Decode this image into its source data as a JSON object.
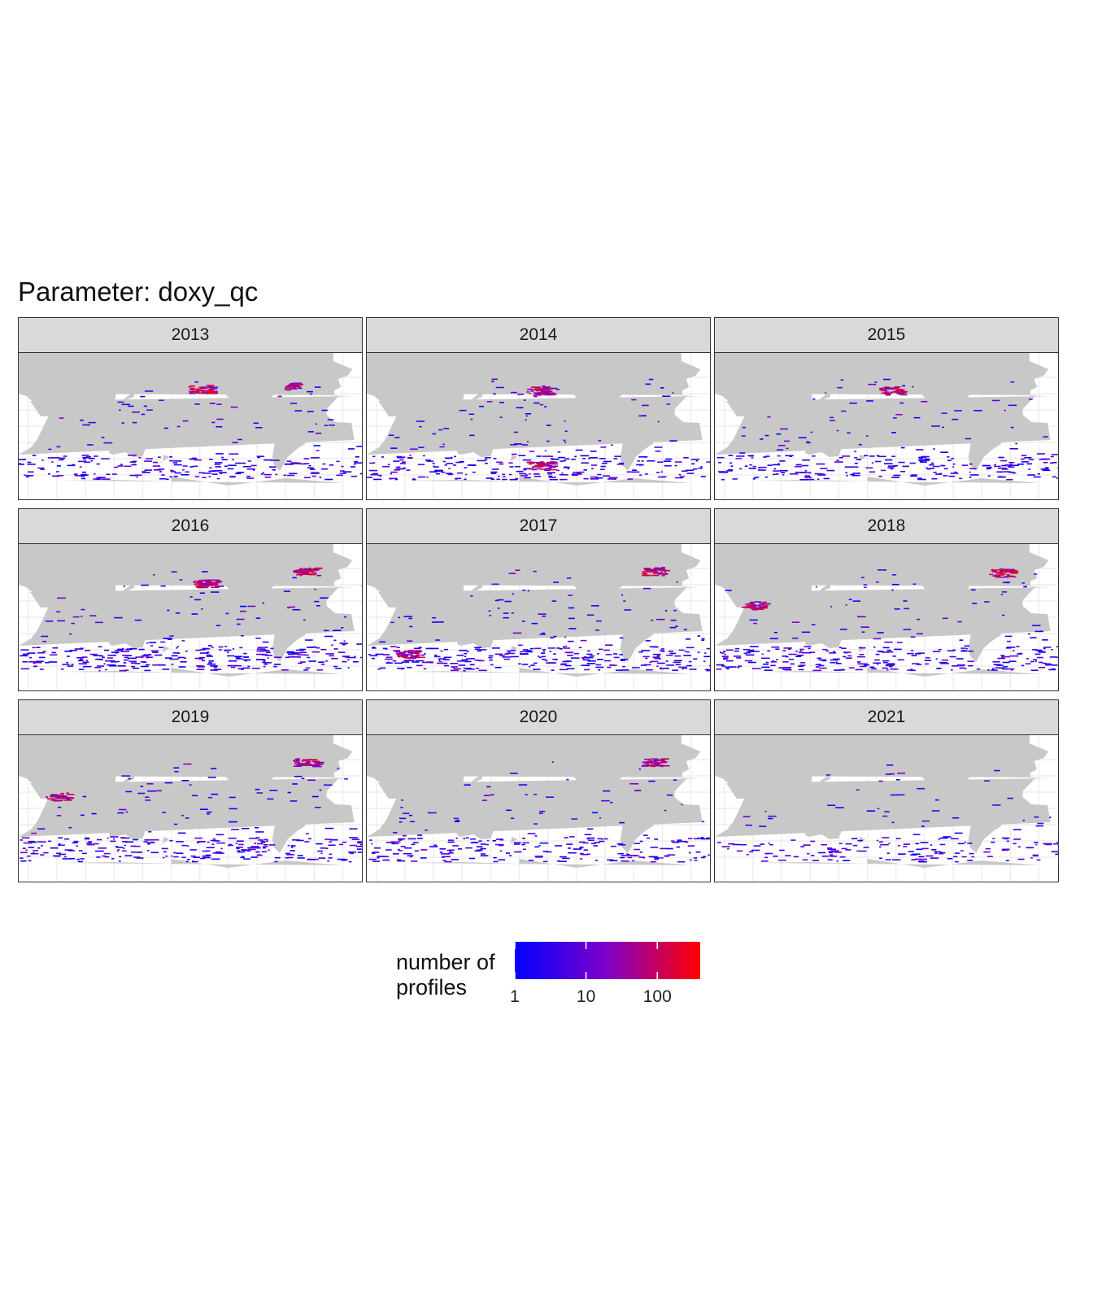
{
  "title": "Parameter: doxy_qc",
  "panels": [
    {
      "label": "2013",
      "seed": 13,
      "density": 0.75,
      "hot": [
        [
          -150,
          46
        ],
        [
          -60,
          50
        ]
      ]
    },
    {
      "label": "2014",
      "seed": 14,
      "density": 0.85,
      "hot": [
        [
          -160,
          44
        ],
        [
          -160,
          -48
        ]
      ]
    },
    {
      "label": "2015",
      "seed": 15,
      "density": 0.8,
      "hot": [
        [
          -155,
          44
        ]
      ]
    },
    {
      "label": "2016",
      "seed": 16,
      "density": 1.0,
      "hot": [
        [
          -145,
          42
        ],
        [
          -40,
          57
        ]
      ]
    },
    {
      "label": "2017",
      "seed": 17,
      "density": 0.95,
      "hot": [
        [
          -40,
          57
        ],
        [
          60,
          -45
        ]
      ]
    },
    {
      "label": "2018",
      "seed": 18,
      "density": 0.95,
      "hot": [
        [
          60,
          15
        ],
        [
          -40,
          55
        ]
      ]
    },
    {
      "label": "2019",
      "seed": 19,
      "density": 0.9,
      "hot": [
        [
          -40,
          57
        ],
        [
          60,
          15
        ]
      ]
    },
    {
      "label": "2020",
      "seed": 20,
      "density": 0.75,
      "hot": [
        [
          -40,
          57
        ]
      ]
    },
    {
      "label": "2021",
      "seed": 21,
      "density": 0.55,
      "hot": []
    }
  ],
  "legend": {
    "title_line1": "number of",
    "title_line2": "profiles",
    "scale": "log10",
    "range": [
      1,
      400
    ],
    "ticks": [
      {
        "value": 1,
        "label": "1"
      },
      {
        "value": 10,
        "label": "10"
      },
      {
        "value": 100,
        "label": "100"
      }
    ],
    "colors": {
      "low": "#0000ff",
      "mid": "#8000c8",
      "high": "#ff0000"
    }
  },
  "colors": {
    "land": "#c8c8c8",
    "ocean": "#ffffff",
    "grid": "#ebebeb",
    "strip": "#d9d9d9",
    "border": "#333333"
  }
}
